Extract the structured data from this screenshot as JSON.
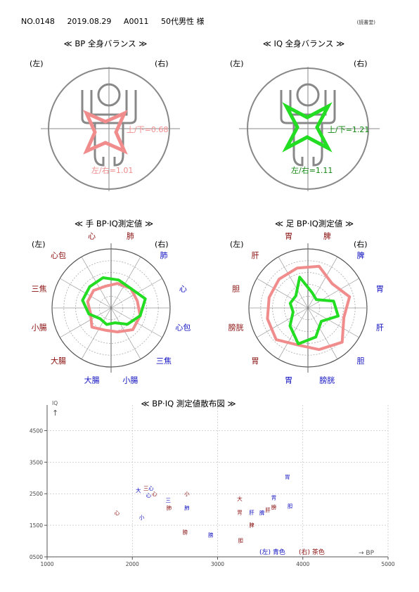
{
  "header": {
    "record_no": "NO.0148",
    "date": "2019.08.29",
    "code": "A0011",
    "person": "50代男性 様",
    "note": "(読書堂)"
  },
  "bp_balance": {
    "title": "≪ BP 全身バランス ≫",
    "left_label": "(左)",
    "right_label": "(右)",
    "ratio_ud": "上/下=0.68",
    "ratio_lr": "左/右=1.01",
    "star_color": "#f08c8c"
  },
  "iq_balance": {
    "title": "≪ IQ 全身バランス ≫",
    "left_label": "(左)",
    "right_label": "(右)",
    "ratio_ud": "上/下=1.21",
    "ratio_lr": "左/右=1.11",
    "star_color": "#22dd22"
  },
  "colors": {
    "bp": "#f08c8c",
    "iq": "#22dd22",
    "left_text": "#1010c0",
    "right_text": "#8a1010",
    "axis": "#888888"
  },
  "chart_data": [
    {
      "type": "radar",
      "title": "≪ 手 BP·IQ測定値 ≫",
      "corner_left": "(左)",
      "corner_right": "(右)",
      "categories": [
        "肺",
        "肺",
        "心",
        "心包",
        "三焦",
        "小腸",
        "大腸",
        "大腸",
        "小腸",
        "三焦",
        "心包",
        "心"
      ],
      "category_sides": [
        "R",
        "L",
        "L",
        "L",
        "L",
        "L",
        "L",
        "R",
        "R",
        "R",
        "R",
        "R"
      ],
      "series": [
        {
          "color": "#f08c8c",
          "values": [
            0.43,
            0.47,
            0.46,
            0.51,
            0.52,
            0.42,
            0.39,
            0.46,
            0.36,
            0.41,
            0.42,
            0.38
          ]
        },
        {
          "color": "#22dd22",
          "values": [
            0.49,
            0.47,
            0.6,
            0.51,
            0.39,
            0.26,
            0.29,
            0.26,
            0.39,
            0.5,
            0.51,
            0.53
          ]
        }
      ]
    },
    {
      "type": "radar",
      "title": "≪ 足 BP·IQ測定値 ≫",
      "corner_left": "(左)",
      "corner_right": "(右)",
      "categories": [
        "脾",
        "脾",
        "胃",
        "肝",
        "胆",
        "膀胱",
        "胃",
        "胃",
        "膀胱",
        "胆",
        "肝",
        "胃"
      ],
      "category_sides": [
        "R",
        "L",
        "L",
        "L",
        "L",
        "L",
        "L",
        "R",
        "R",
        "R",
        "R",
        "R"
      ],
      "series": [
        {
          "color": "#f08c8c",
          "values": [
            0.73,
            0.58,
            0.73,
            0.63,
            0.82,
            0.73,
            0.65,
            0.76,
            0.71,
            0.68,
            0.69,
            0.7
          ]
        },
        {
          "color": "#22dd22",
          "values": [
            0.27,
            0.2,
            0.45,
            0.53,
            0.32,
            0.51,
            0.63,
            0.43,
            0.26,
            0.31,
            0.29,
            0.54
          ]
        }
      ]
    },
    {
      "type": "scatter",
      "title": "≪ BP·IQ 測定値散布図 ≫",
      "xlabel": "→ BP",
      "ylabel": "IQ",
      "ylabel_arrow": "↑",
      "xlim": [
        1000,
        5000
      ],
      "ylim": [
        500,
        5000
      ],
      "x_ticks": [
        "1000",
        "2000",
        "3000",
        "4000",
        "5000"
      ],
      "y_ticks": [
        "0500",
        "1500",
        "2500",
        "3500",
        "4500"
      ],
      "legend": {
        "left": "(左) 青色",
        "right": "(右) 茶色"
      },
      "points": [
        {
          "label": "大",
          "side": "L",
          "x": 2070,
          "y": 2620
        },
        {
          "label": "三",
          "side": "R",
          "x": 2160,
          "y": 2680
        },
        {
          "label": "心",
          "side": "L",
          "x": 2220,
          "y": 2680
        },
        {
          "label": "心",
          "side": "L",
          "x": 2190,
          "y": 2460
        },
        {
          "label": "心",
          "side": "R",
          "x": 2260,
          "y": 2500
        },
        {
          "label": "小",
          "side": "R",
          "x": 2640,
          "y": 2500
        },
        {
          "label": "三",
          "side": "L",
          "x": 2420,
          "y": 2300
        },
        {
          "label": "肺",
          "side": "R",
          "x": 2430,
          "y": 2060
        },
        {
          "label": "肺",
          "side": "L",
          "x": 2640,
          "y": 2060
        },
        {
          "label": "心",
          "side": "R",
          "x": 1820,
          "y": 1900
        },
        {
          "label": "小",
          "side": "L",
          "x": 2110,
          "y": 1760
        },
        {
          "label": "膀",
          "side": "R",
          "x": 2620,
          "y": 1290
        },
        {
          "label": "膀",
          "side": "L",
          "x": 2920,
          "y": 1200
        },
        {
          "label": "胃",
          "side": "L",
          "x": 3820,
          "y": 3040
        },
        {
          "label": "大",
          "side": "R",
          "x": 3260,
          "y": 2350
        },
        {
          "label": "胃",
          "side": "L",
          "x": 3660,
          "y": 2380
        },
        {
          "label": "胆",
          "side": "L",
          "x": 3850,
          "y": 2120
        },
        {
          "label": "膀",
          "side": "R",
          "x": 3660,
          "y": 2080
        },
        {
          "label": "肝",
          "side": "R",
          "x": 3590,
          "y": 1990
        },
        {
          "label": "肝",
          "side": "L",
          "x": 3400,
          "y": 1910
        },
        {
          "label": "脾",
          "side": "L",
          "x": 3520,
          "y": 1900
        },
        {
          "label": "胃",
          "side": "R",
          "x": 3260,
          "y": 1910
        },
        {
          "label": "脾",
          "side": "R",
          "x": 3400,
          "y": 1510
        },
        {
          "label": "胆",
          "side": "R",
          "x": 3270,
          "y": 1020
        }
      ]
    }
  ]
}
